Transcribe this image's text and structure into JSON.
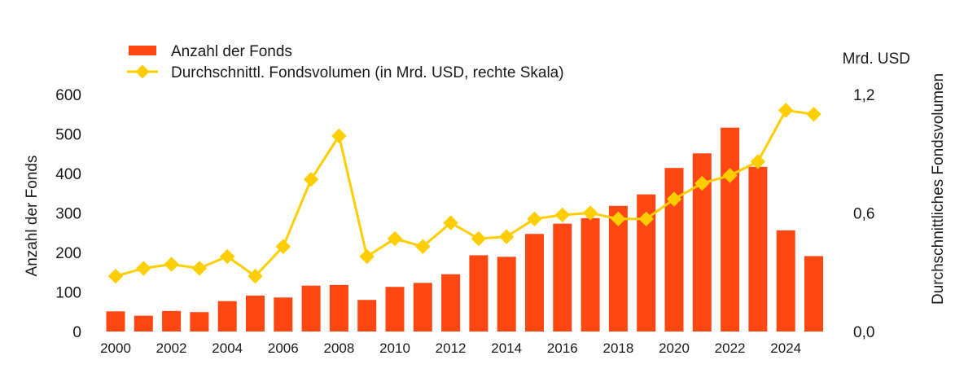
{
  "chart_data": {
    "type": "bar",
    "categories": [
      "2000",
      "2001",
      "2002",
      "2003",
      "2004",
      "2005",
      "2006",
      "2007",
      "2008",
      "2009",
      "2010",
      "2011",
      "2012",
      "2013",
      "2014",
      "2015",
      "2016",
      "2017",
      "2018",
      "2019",
      "2020",
      "2021",
      "2022",
      "2023",
      "2024",
      "2025"
    ],
    "x_tick_labels": [
      "2000",
      "2002",
      "2004",
      "2006",
      "2008",
      "2010",
      "2012",
      "2014",
      "2016",
      "2018",
      "2020",
      "2022",
      "2024"
    ],
    "series": [
      {
        "name": "Anzahl der Fonds",
        "type": "bar",
        "axis": "left",
        "color": "#ff4713",
        "values": [
          51,
          40,
          52,
          49,
          77,
          91,
          86,
          116,
          118,
          80,
          113,
          123,
          145,
          193,
          189,
          247,
          273,
          287,
          318,
          347,
          414,
          451,
          516,
          417,
          256,
          191
        ]
      },
      {
        "name": "Durchschnittl. Fondsvolumen (in Mrd. USD, rechte Skala)",
        "type": "line",
        "axis": "right",
        "color": "#ffce00",
        "values": [
          0.28,
          0.32,
          0.34,
          0.32,
          0.38,
          0.28,
          0.43,
          0.77,
          0.99,
          0.38,
          0.47,
          0.43,
          0.55,
          0.47,
          0.48,
          0.57,
          0.59,
          0.6,
          0.57,
          0.57,
          0.67,
          0.75,
          0.79,
          0.86,
          1.12,
          1.1
        ]
      }
    ],
    "ylabel": "Anzahl der Fonds",
    "ylim": [
      0,
      600
    ],
    "y_ticks": [
      0,
      100,
      200,
      300,
      400,
      500,
      600
    ],
    "y2label": "Durchschnittliches Fondsvolumen",
    "y2_unit": "Mrd. USD",
    "y2lim": [
      0,
      1.2
    ],
    "y2_tick_labels": [
      "0,0",
      "0,6",
      "1,2"
    ],
    "y2_ticks": [
      0,
      0.6,
      1.2
    ],
    "grid": false,
    "legend_position": "top-left"
  }
}
